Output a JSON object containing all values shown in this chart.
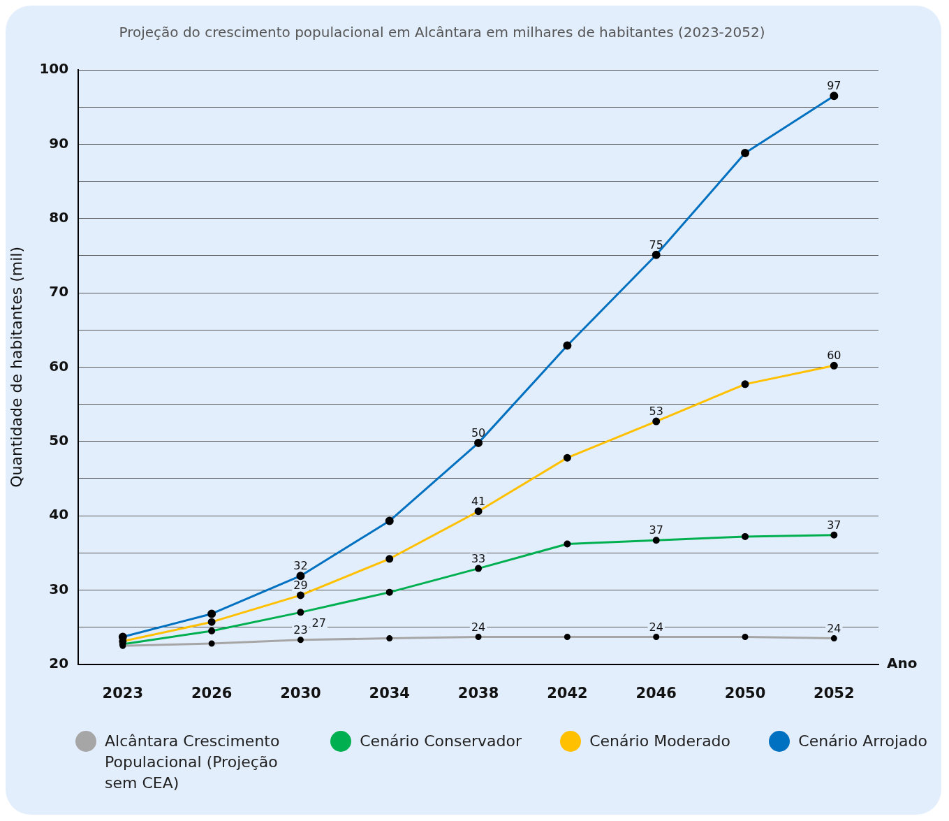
{
  "chart_data": {
    "type": "line",
    "title": "Projeção do crescimento populacional em Alcântara em milhares de habitantes (2023-2052)",
    "xlabel": "Ano",
    "ylabel": "Quantidade de habitantes (mil)",
    "categories": [
      "2023",
      "2026",
      "2030",
      "2034",
      "2038",
      "2042",
      "2046",
      "2050",
      "2052"
    ],
    "series": [
      {
        "name": "Alcântara Crescimento Populacional (Projeção sem CEA)",
        "color": "#a6a6a6",
        "values": [
          22.5,
          22.8,
          23.3,
          23.5,
          23.7,
          23.7,
          23.7,
          23.7,
          23.5
        ],
        "value_labels": [
          null,
          null,
          "23",
          null,
          "24",
          null,
          "24",
          null,
          "24"
        ]
      },
      {
        "name": "Cenário Conservador",
        "color": "#00b050",
        "values": [
          22.7,
          24.5,
          27,
          29.7,
          32.9,
          36.2,
          36.7,
          37.2,
          37.4
        ],
        "value_labels": [
          null,
          null,
          "27",
          null,
          "33",
          null,
          "37",
          null,
          "37"
        ]
      },
      {
        "name": "Cenário Moderado",
        "color": "#ffc000",
        "values": [
          23.1,
          25.7,
          29.3,
          34.2,
          40.6,
          47.8,
          52.7,
          57.7,
          60.2
        ],
        "value_labels": [
          null,
          null,
          "29",
          null,
          "41",
          null,
          "53",
          null,
          "60"
        ]
      },
      {
        "name": "Cenário Arrojado",
        "color": "#0070c0",
        "values": [
          23.7,
          26.8,
          31.9,
          39.3,
          49.8,
          62.9,
          75.1,
          88.8,
          96.5
        ],
        "value_labels": [
          null,
          null,
          "32",
          null,
          "50",
          null,
          "75",
          null,
          "97"
        ]
      }
    ],
    "ylim": [
      20,
      100
    ],
    "yticks": [
      20,
      {
        "value": 25,
        "label": null
      },
      30,
      {
        "value": 35,
        "label": null
      },
      40,
      {
        "value": 45,
        "label": null
      },
      50,
      {
        "value": 55,
        "label": null
      },
      60,
      {
        "value": 65,
        "label": null
      },
      70,
      {
        "value": 75,
        "label": null
      },
      80,
      {
        "value": 85,
        "label": null
      },
      90,
      {
        "value": 95,
        "label": null
      },
      100
    ],
    "grid": "y",
    "legend": "bottom",
    "marker": "circle"
  }
}
